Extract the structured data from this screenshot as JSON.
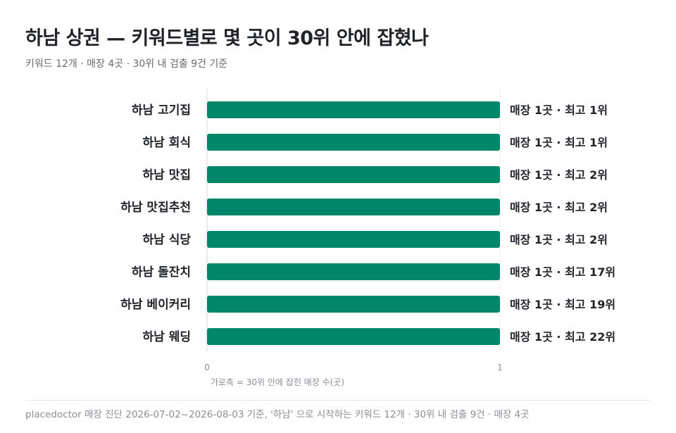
{
  "title": "하남 상권 — 키워드별로 몇 곳이 30위 안에 잡혔나",
  "subtitle": "키워드 12개 · 매장 4곳 · 30위 내 검출 9건 기준",
  "footer": "placedoctor 매장 진단 2026-07-02~2026-08-03 기준, '하남' 으로 시작하는 키워드 12개 · 30위 내 검출 9건 · 매장 4곳",
  "colors": {
    "bar": "#00876a",
    "axis": "#d9d9d9",
    "text": "#1f2328",
    "muted": "#8a8e94"
  },
  "chart_data": {
    "type": "bar",
    "orientation": "horizontal",
    "categories": [
      "하남 고기집",
      "하남 회식",
      "하남 맛집",
      "하남 맛집추천",
      "하남 식당",
      "하남 돌잔치",
      "하남 베이커리",
      "하남 웨딩"
    ],
    "values": [
      1,
      1,
      1,
      1,
      1,
      1,
      1,
      1
    ],
    "data_labels": [
      "매장 1곳 · 최고 1위",
      "매장 1곳 · 최고 1위",
      "매장 1곳 · 최고 2위",
      "매장 1곳 · 최고 2위",
      "매장 1곳 · 최고 2위",
      "매장 1곳 · 최고 17위",
      "매장 1곳 · 최고 19위",
      "매장 1곳 · 최고 22위"
    ],
    "xlim": [
      0,
      1
    ],
    "xticks": [
      "0",
      "1"
    ],
    "xlabel": "가로축 = 30위 안에 잡힌 매장 수(곳)"
  }
}
